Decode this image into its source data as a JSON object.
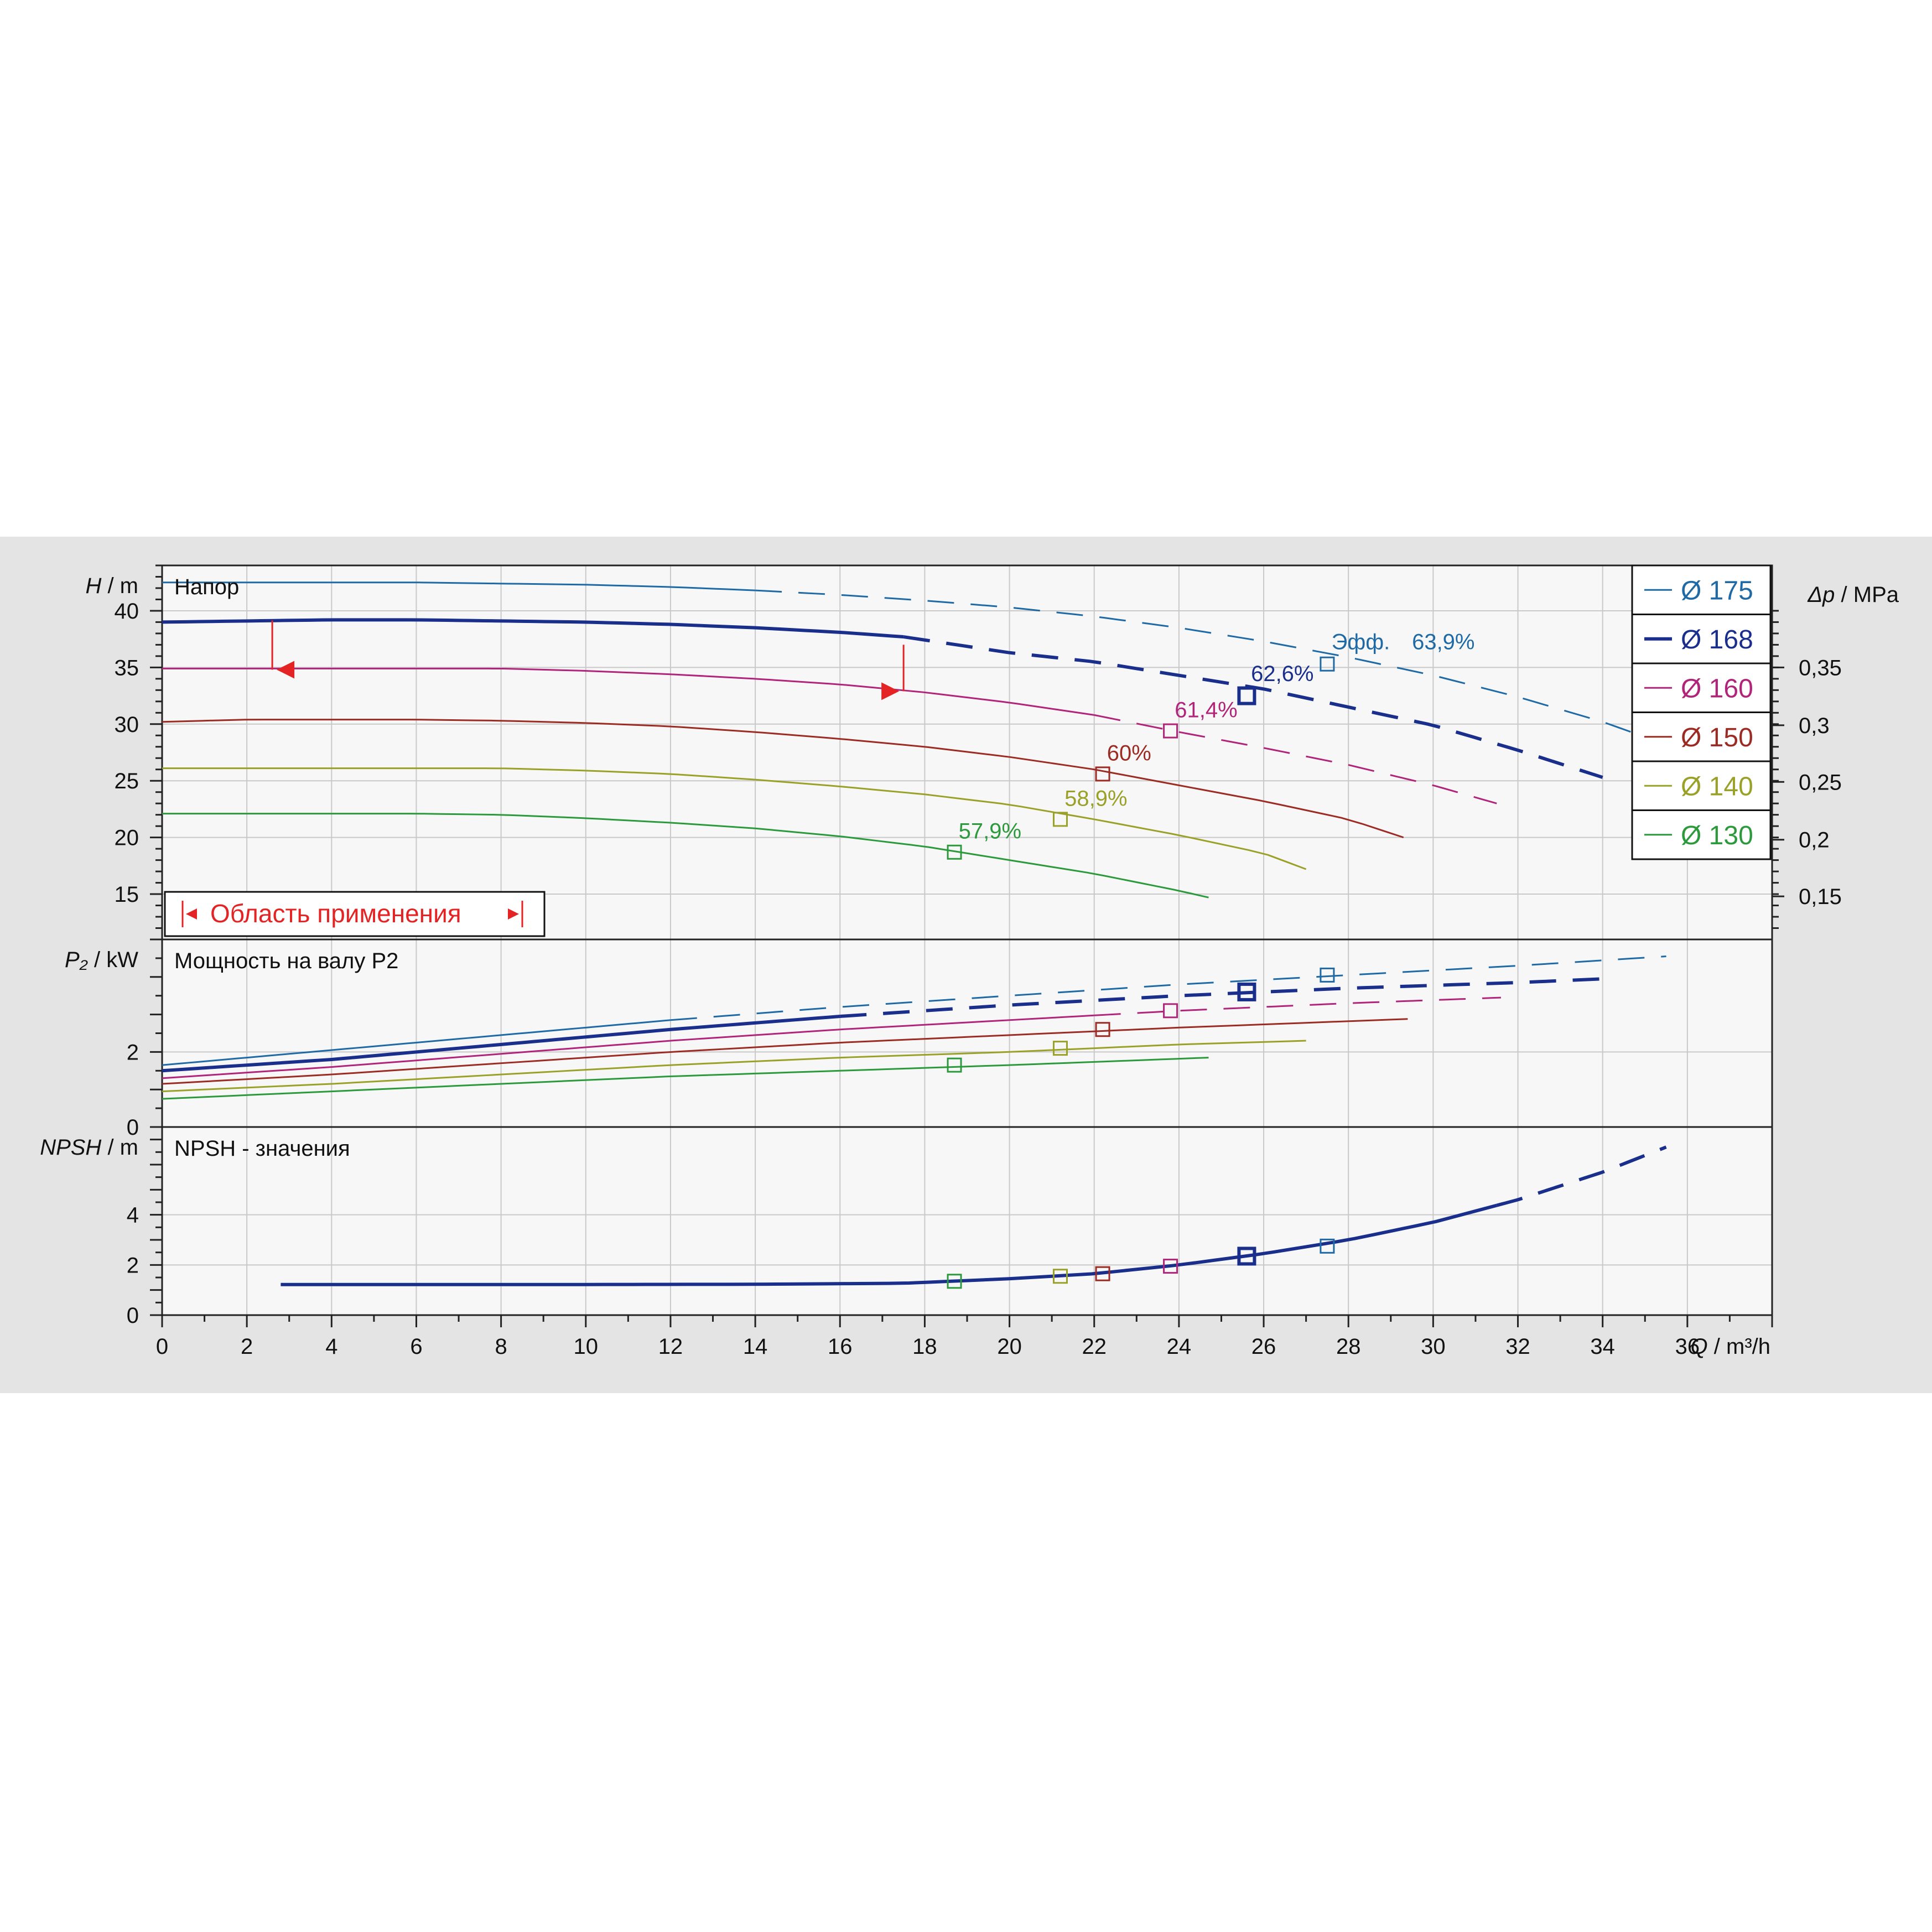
{
  "chart_data": [
    {
      "type": "line",
      "title": "Напор",
      "ylabel_symbol": "H",
      "ylabel_unit": "m",
      "xlabel_symbol": "Q",
      "xlabel_unit": "m³/h",
      "xlim": [
        0,
        38
      ],
      "xticks": [
        "0",
        "2",
        "4",
        "6",
        "8",
        "10",
        "12",
        "14",
        "16",
        "18",
        "20",
        "22",
        "24",
        "26",
        "28",
        "30",
        "32",
        "34",
        "36"
      ],
      "ylim": [
        11,
        44
      ],
      "yticks": [
        "15",
        "20",
        "25",
        "30",
        "35",
        "40"
      ],
      "y2label_symbol": "Δp",
      "y2label_unit": "MPa",
      "y2ticks": [
        {
          "label": "0,15",
          "h": 14.8
        },
        {
          "label": "0,2",
          "h": 19.8
        },
        {
          "label": "0,25",
          "h": 24.9
        },
        {
          "label": "0,3",
          "h": 29.9
        },
        {
          "label": "0,35",
          "h": 35.0
        }
      ],
      "grid": true,
      "legend_position": "top-right",
      "series": [
        {
          "name": "Ø 175",
          "color": "#1f6aa5",
          "weight": 3,
          "x": [
            0,
            2,
            4,
            6,
            8,
            10,
            12,
            14,
            16,
            18,
            20,
            22,
            24,
            26,
            28,
            30,
            32,
            34,
            35.5
          ],
          "y": [
            42.5,
            42.5,
            42.5,
            42.5,
            42.4,
            42.3,
            42.1,
            41.8,
            41.4,
            40.9,
            40.3,
            39.5,
            38.5,
            37.3,
            35.9,
            34.3,
            32.4,
            30.2,
            28.2
          ],
          "solid_until": 14,
          "marker_x": 27.5,
          "marker_y": 35.3
        },
        {
          "name": "Ø 168",
          "color": "#1a2f8c",
          "weight": 6,
          "x": [
            0,
            2,
            4,
            6,
            8,
            10,
            12,
            14,
            16,
            17.5,
            20,
            22,
            24,
            26,
            28,
            30,
            32,
            34
          ],
          "y": [
            39.0,
            39.1,
            39.2,
            39.2,
            39.1,
            39.0,
            38.8,
            38.5,
            38.1,
            37.7,
            36.3,
            35.5,
            34.3,
            33.1,
            31.5,
            29.9,
            27.7,
            25.3
          ],
          "solid_until": 17.5,
          "marker_x": 25.6,
          "marker_y": 32.5
        },
        {
          "name": "Ø 160",
          "color": "#b0247a",
          "weight": 3,
          "x": [
            0,
            2,
            4,
            6,
            8,
            10,
            12,
            14,
            16,
            18,
            20,
            22,
            24,
            26,
            28,
            30,
            31.5
          ],
          "y": [
            34.9,
            34.9,
            34.9,
            34.9,
            34.9,
            34.7,
            34.4,
            34.0,
            33.5,
            32.8,
            31.9,
            30.8,
            29.3,
            27.9,
            26.4,
            24.6,
            23.0
          ],
          "solid_until": 22,
          "marker_x": 23.8,
          "marker_y": 29.4
        },
        {
          "name": "Ø 150",
          "color": "#9c2b24",
          "weight": 3,
          "x": [
            0,
            2,
            4,
            6,
            8,
            10,
            12,
            14,
            16,
            18,
            20,
            22,
            24,
            26,
            28,
            29.3
          ],
          "y": [
            30.2,
            30.4,
            30.4,
            30.4,
            30.3,
            30.1,
            29.8,
            29.3,
            28.7,
            28.0,
            27.1,
            26.0,
            24.6,
            23.2,
            21.6,
            20.0
          ],
          "solid_until": 29.3,
          "marker_x": 22.2,
          "marker_y": 25.6
        },
        {
          "name": "Ø 140",
          "color": "#9aa128",
          "weight": 3,
          "x": [
            0,
            2,
            4,
            6,
            8,
            10,
            12,
            14,
            16,
            18,
            20,
            22,
            24,
            26,
            27
          ],
          "y": [
            26.1,
            26.1,
            26.1,
            26.1,
            26.1,
            25.9,
            25.6,
            25.1,
            24.5,
            23.8,
            22.9,
            21.6,
            20.2,
            18.6,
            17.2
          ],
          "solid_until": 27,
          "marker_x": 21.2,
          "marker_y": 21.6
        },
        {
          "name": "Ø 130",
          "color": "#2c9a3c",
          "weight": 3,
          "x": [
            0,
            2,
            4,
            6,
            8,
            10,
            12,
            14,
            16,
            18,
            20,
            22,
            24,
            24.7
          ],
          "y": [
            22.1,
            22.1,
            22.1,
            22.1,
            22.0,
            21.7,
            21.3,
            20.8,
            20.1,
            19.2,
            18.0,
            16.8,
            15.3,
            14.7
          ],
          "solid_until": 24.7,
          "marker_x": 18.7,
          "marker_y": 18.7
        }
      ],
      "efficiency_labels": [
        {
          "text": "Эфф.",
          "x": 27.6,
          "y": 36.6,
          "color": "#1f6aa5"
        },
        {
          "text": "63,9%",
          "x": 29.5,
          "y": 36.6,
          "color": "#1f6aa5"
        },
        {
          "text": "62,6%",
          "x": 25.7,
          "y": 33.8,
          "color": "#1a2f8c"
        },
        {
          "text": "61,4%",
          "x": 23.9,
          "y": 30.6,
          "color": "#b0247a"
        },
        {
          "text": "60%",
          "x": 22.3,
          "y": 26.8,
          "color": "#9c2b24"
        },
        {
          "text": "58,9%",
          "x": 21.3,
          "y": 22.8,
          "color": "#9aa128"
        },
        {
          "text": "57,9%",
          "x": 18.8,
          "y": 19.9,
          "color": "#2c9a3c"
        }
      ],
      "application_range": {
        "label": "Область применения",
        "q_min": 2.6,
        "q_max": 17.5,
        "h_min_level": 34.8,
        "h_max_level": 32.9,
        "color": "#e42424"
      }
    },
    {
      "type": "line",
      "title": "Мощность на валу P2",
      "ylabel_symbol": "P₂",
      "ylabel_unit": "kW",
      "xlim": [
        0,
        38
      ],
      "ylim": [
        0,
        5
      ],
      "yticks": [
        "0",
        "2"
      ],
      "grid": true,
      "series": [
        {
          "name": "Ø 175",
          "color": "#1f6aa5",
          "weight": 3,
          "x": [
            0,
            4,
            8,
            12,
            16,
            20,
            24,
            28,
            32,
            35.5
          ],
          "y": [
            1.65,
            2.05,
            2.45,
            2.85,
            3.2,
            3.5,
            3.8,
            4.05,
            4.3,
            4.55
          ],
          "solid_until": 12,
          "marker_x": 27.5,
          "marker_y": 4.05
        },
        {
          "name": "Ø 168",
          "color": "#1a2f8c",
          "weight": 6,
          "x": [
            0,
            4,
            8,
            12,
            16,
            20,
            24,
            28,
            32,
            34
          ],
          "y": [
            1.5,
            1.8,
            2.2,
            2.6,
            2.95,
            3.25,
            3.5,
            3.7,
            3.85,
            3.95
          ],
          "solid_until": 16,
          "marker_x": 25.6,
          "marker_y": 3.6
        },
        {
          "name": "Ø 160",
          "color": "#b0247a",
          "weight": 3,
          "x": [
            0,
            4,
            8,
            12,
            16,
            20,
            24,
            28,
            31.6
          ],
          "y": [
            1.3,
            1.6,
            1.95,
            2.3,
            2.6,
            2.85,
            3.1,
            3.3,
            3.45
          ],
          "solid_until": 22,
          "marker_x": 23.8,
          "marker_y": 3.1
        },
        {
          "name": "Ø 150",
          "color": "#9c2b24",
          "weight": 3,
          "x": [
            0,
            4,
            8,
            12,
            16,
            20,
            24,
            28,
            29.4
          ],
          "y": [
            1.15,
            1.4,
            1.7,
            2.0,
            2.25,
            2.45,
            2.65,
            2.82,
            2.88
          ],
          "solid_until": 29.4,
          "marker_x": 22.2,
          "marker_y": 2.6
        },
        {
          "name": "Ø 140",
          "color": "#9aa128",
          "weight": 3,
          "x": [
            0,
            4,
            8,
            12,
            16,
            20,
            24,
            27
          ],
          "y": [
            0.95,
            1.15,
            1.4,
            1.65,
            1.85,
            2.0,
            2.2,
            2.3
          ],
          "solid_until": 27,
          "marker_x": 21.2,
          "marker_y": 2.1
        },
        {
          "name": "Ø 130",
          "color": "#2c9a3c",
          "weight": 3,
          "x": [
            0,
            4,
            8,
            12,
            16,
            20,
            24.7
          ],
          "y": [
            0.75,
            0.95,
            1.15,
            1.35,
            1.5,
            1.65,
            1.85
          ],
          "solid_until": 24.7,
          "marker_x": 18.7,
          "marker_y": 1.65
        }
      ]
    },
    {
      "type": "line",
      "title": "NPSH - значения",
      "ylabel_symbol": "NPSH",
      "ylabel_unit": "m",
      "xlim": [
        0,
        38
      ],
      "ylim": [
        0,
        7.5
      ],
      "yticks": [
        "0",
        "2",
        "4"
      ],
      "grid": true,
      "series": [
        {
          "name": "NPSH",
          "color": "#1a2f8c",
          "weight": 6,
          "x": [
            2.8,
            6,
            10,
            14,
            17.5,
            20,
            22,
            24,
            26,
            28,
            30,
            32,
            34,
            35.5
          ],
          "y": [
            1.22,
            1.22,
            1.22,
            1.23,
            1.27,
            1.45,
            1.65,
            2.0,
            2.45,
            3.0,
            3.7,
            4.6,
            5.7,
            6.7
          ],
          "solid_until": 31.5,
          "markers": [
            {
              "x": 18.7,
              "y": 1.35,
              "color": "#2c9a3c"
            },
            {
              "x": 21.2,
              "y": 1.55,
              "color": "#9aa128"
            },
            {
              "x": 22.2,
              "y": 1.65,
              "color": "#9c2b24"
            },
            {
              "x": 23.8,
              "y": 1.95,
              "color": "#b0247a"
            },
            {
              "x": 25.6,
              "y": 2.35,
              "color": "#1a2f8c"
            },
            {
              "x": 27.5,
              "y": 2.75,
              "color": "#1f6aa5"
            }
          ]
        }
      ]
    }
  ]
}
